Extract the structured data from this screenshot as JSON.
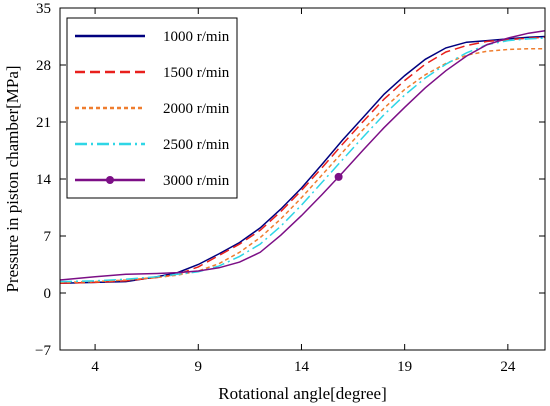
{
  "chart_data": {
    "type": "line",
    "title": "",
    "xlabel": "Rotational angle[degree]",
    "ylabel": "Pressure in piston chamber[MPa]",
    "xlim": [
      2.3,
      25.8
    ],
    "ylim": [
      -7,
      35
    ],
    "xticks": [
      4,
      9,
      14,
      19,
      24
    ],
    "yticks": [
      -7,
      0,
      7,
      14,
      21,
      28,
      35
    ],
    "xtick_labels": [
      "4",
      "9",
      "14",
      "19",
      "24"
    ],
    "ytick_labels": [
      "−7",
      "0",
      "7",
      "14",
      "21",
      "28",
      "35"
    ],
    "grid": false,
    "legend_position": "top-left",
    "series": [
      {
        "name": "1000 r/min",
        "color": "#00007f",
        "style": "solid",
        "marker": "none",
        "x": [
          2.3,
          4,
          5.5,
          7,
          8,
          9,
          10,
          11,
          12,
          13,
          14,
          15,
          16,
          17,
          18,
          19,
          20,
          21,
          22,
          23,
          24,
          25,
          25.8
        ],
        "y": [
          1.2,
          1.3,
          1.4,
          2.0,
          2.5,
          3.5,
          4.8,
          6.2,
          8.0,
          10.3,
          12.9,
          15.8,
          18.8,
          21.6,
          24.4,
          26.7,
          28.7,
          30.1,
          30.8,
          31.0,
          31.2,
          31.4,
          31.5
        ]
      },
      {
        "name": "1500 r/min",
        "color": "#e8201c",
        "style": "dash",
        "marker": "none",
        "x": [
          2.3,
          4,
          5.5,
          7,
          8,
          9,
          10,
          11,
          12,
          13,
          14,
          15,
          16,
          17,
          18,
          19,
          20,
          21,
          22,
          23,
          24,
          25,
          25.8
        ],
        "y": [
          1.2,
          1.3,
          1.5,
          1.9,
          2.3,
          3.2,
          4.6,
          6.0,
          7.7,
          10.0,
          12.6,
          15.4,
          18.3,
          21.1,
          23.8,
          26.1,
          28.1,
          29.6,
          30.4,
          30.9,
          31.1,
          31.3,
          31.4
        ]
      },
      {
        "name": "2000 r/min",
        "color": "#ef7d2e",
        "style": "dot",
        "marker": "none",
        "x": [
          2.3,
          4,
          5.5,
          7,
          8,
          9,
          10,
          11,
          12,
          13,
          14,
          15,
          16,
          17,
          18,
          19,
          20,
          21,
          22,
          23,
          24,
          25,
          25.8
        ],
        "y": [
          1.3,
          1.4,
          1.6,
          1.9,
          2.2,
          2.7,
          3.6,
          5.0,
          6.8,
          9.1,
          11.7,
          14.5,
          17.3,
          20.1,
          22.7,
          25.0,
          26.8,
          28.2,
          29.2,
          29.7,
          29.9,
          30.0,
          30.0
        ]
      },
      {
        "name": "2500 r/min",
        "color": "#2fd6e6",
        "style": "dashdot",
        "marker": "none",
        "x": [
          2.3,
          4,
          5.5,
          7,
          8,
          9,
          10,
          11,
          12,
          13,
          14,
          15,
          16,
          17,
          18,
          19,
          20,
          21,
          22,
          23,
          24,
          25,
          25.8
        ],
        "y": [
          1.4,
          1.5,
          1.7,
          2.0,
          2.3,
          2.6,
          3.3,
          4.5,
          6.0,
          8.2,
          10.8,
          13.6,
          16.4,
          19.2,
          21.9,
          24.3,
          26.4,
          28.1,
          29.5,
          30.5,
          31.0,
          31.2,
          31.3
        ]
      },
      {
        "name": "3000 r/min",
        "color": "#7c0f86",
        "style": "solid",
        "marker": "circle",
        "marker_x": 15.8,
        "x": [
          2.3,
          4,
          5.5,
          7,
          8,
          9,
          10,
          11,
          12,
          13,
          14,
          15,
          16,
          17,
          18,
          19,
          20,
          21,
          22,
          23,
          24,
          25,
          25.8
        ],
        "y": [
          1.6,
          2.0,
          2.3,
          2.4,
          2.5,
          2.7,
          3.1,
          3.8,
          5.0,
          7.1,
          9.5,
          12.1,
          14.8,
          17.6,
          20.3,
          22.8,
          25.2,
          27.3,
          29.1,
          30.5,
          31.3,
          31.9,
          32.2
        ]
      }
    ]
  }
}
